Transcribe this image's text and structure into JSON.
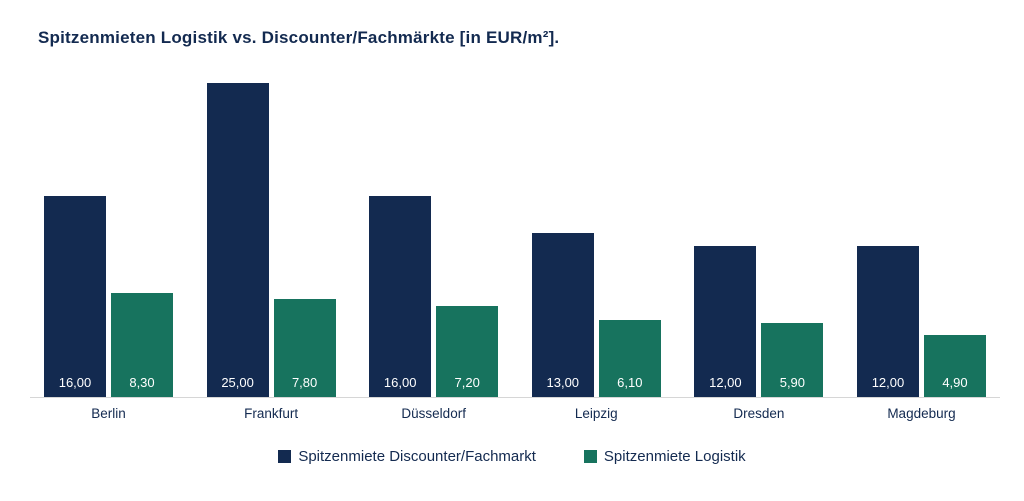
{
  "title": "Spitzenmieten Logistik vs. Discounter/Fachmärkte [in EUR/m²].",
  "colors": {
    "discounter": "#132a50",
    "logistik": "#17735e",
    "axis": "#d6d6d6",
    "text": "#132a50",
    "value_label": "#ffffff"
  },
  "chart_data": {
    "type": "bar",
    "title": "Spitzenmieten Logistik vs. Discounter/Fachmärkte [in EUR/m²].",
    "categories": [
      "Berlin",
      "Frankfurt",
      "Düsseldorf",
      "Leipzig",
      "Dresden",
      "Magdeburg"
    ],
    "series": [
      {
        "name": "Spitzenmiete Discounter/Fachmarkt",
        "color": "#132a50",
        "values": [
          16.0,
          25.0,
          16.0,
          13.0,
          12.0,
          12.0
        ],
        "labels": [
          "16,00",
          "25,00",
          "16,00",
          "13,00",
          "12,00",
          "12,00"
        ]
      },
      {
        "name": "Spitzenmiete Logistik",
        "color": "#17735e",
        "values": [
          8.3,
          7.8,
          7.2,
          6.1,
          5.9,
          4.9
        ],
        "labels": [
          "8,30",
          "7,80",
          "7,20",
          "6,10",
          "5,90",
          "4,90"
        ]
      }
    ],
    "xlabel": "",
    "ylabel": "EUR/m²",
    "ylim": [
      0,
      26
    ],
    "grid": false,
    "value_labels_inside_bars": true,
    "value_format": "comma-decimal",
    "legend_position": "bottom"
  },
  "legend": {
    "items": [
      {
        "label": "Spitzenmiete Discounter/Fachmarkt",
        "color": "#132a50"
      },
      {
        "label": "Spitzenmiete Logistik",
        "color": "#17735e"
      }
    ]
  }
}
